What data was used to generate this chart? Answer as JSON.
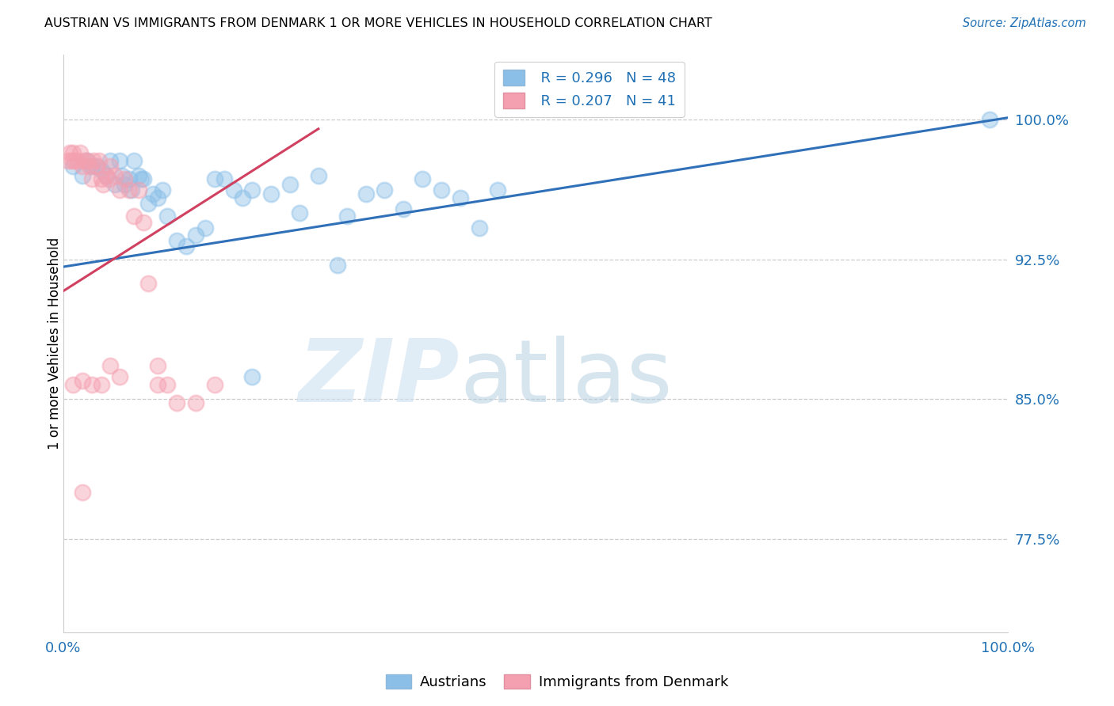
{
  "title": "AUSTRIAN VS IMMIGRANTS FROM DENMARK 1 OR MORE VEHICLES IN HOUSEHOLD CORRELATION CHART",
  "source": "Source: ZipAtlas.com",
  "ylabel": "1 or more Vehicles in Household",
  "xlim": [
    0.0,
    1.0
  ],
  "ylim": [
    0.725,
    1.035
  ],
  "yticks": [
    0.775,
    0.85,
    0.925,
    1.0
  ],
  "ytick_labels": [
    "77.5%",
    "85.0%",
    "92.5%",
    "100.0%"
  ],
  "xticks": [
    0.0,
    1.0
  ],
  "xtick_labels": [
    "0.0%",
    "100.0%"
  ],
  "legend_R_blue": "R = 0.296",
  "legend_N_blue": "N = 48",
  "legend_R_pink": "R = 0.207",
  "legend_N_pink": "N = 41",
  "blue_color": "#8bbfe8",
  "pink_color": "#f4a0b0",
  "line_blue_color": "#3070b8",
  "line_pink_color": "#d04060",
  "blue_line_x0": 0.0,
  "blue_line_y0": 0.921,
  "blue_line_x1": 1.0,
  "blue_line_y1": 1.001,
  "pink_line_x0": 0.0,
  "pink_line_y0": 0.908,
  "pink_line_x1": 0.27,
  "pink_line_y1": 0.995,
  "austrians_x": [
    0.01,
    0.02,
    0.025,
    0.03,
    0.035,
    0.04,
    0.045,
    0.05,
    0.055,
    0.06,
    0.062,
    0.065,
    0.07,
    0.072,
    0.075,
    0.08,
    0.082,
    0.085,
    0.09,
    0.095,
    0.1,
    0.105,
    0.11,
    0.12,
    0.13,
    0.14,
    0.15,
    0.16,
    0.17,
    0.18,
    0.19,
    0.2,
    0.22,
    0.24,
    0.25,
    0.27,
    0.29,
    0.3,
    0.32,
    0.34,
    0.36,
    0.38,
    0.4,
    0.42,
    0.44,
    0.46,
    0.2,
    0.98
  ],
  "austrians_y": [
    0.975,
    0.97,
    0.978,
    0.975,
    0.975,
    0.973,
    0.97,
    0.978,
    0.965,
    0.978,
    0.97,
    0.965,
    0.968,
    0.962,
    0.978,
    0.97,
    0.968,
    0.968,
    0.955,
    0.96,
    0.958,
    0.962,
    0.948,
    0.935,
    0.932,
    0.938,
    0.942,
    0.968,
    0.968,
    0.962,
    0.958,
    0.962,
    0.96,
    0.965,
    0.95,
    0.97,
    0.922,
    0.948,
    0.96,
    0.962,
    0.952,
    0.968,
    0.962,
    0.958,
    0.942,
    0.962,
    0.862,
    1.0
  ],
  "denmark_x": [
    0.005,
    0.007,
    0.009,
    0.01,
    0.012,
    0.015,
    0.018,
    0.02,
    0.022,
    0.025,
    0.028,
    0.03,
    0.032,
    0.035,
    0.038,
    0.04,
    0.042,
    0.045,
    0.048,
    0.05,
    0.055,
    0.06,
    0.065,
    0.07,
    0.075,
    0.08,
    0.085,
    0.09,
    0.1,
    0.11,
    0.12,
    0.14,
    0.16,
    0.1,
    0.05,
    0.06,
    0.02,
    0.03,
    0.04,
    0.02,
    0.01
  ],
  "denmark_y": [
    0.978,
    0.982,
    0.978,
    0.982,
    0.978,
    0.978,
    0.982,
    0.975,
    0.978,
    0.978,
    0.975,
    0.968,
    0.978,
    0.975,
    0.978,
    0.968,
    0.965,
    0.97,
    0.968,
    0.975,
    0.97,
    0.962,
    0.968,
    0.962,
    0.948,
    0.962,
    0.945,
    0.912,
    0.858,
    0.858,
    0.848,
    0.848,
    0.858,
    0.868,
    0.868,
    0.862,
    0.8,
    0.858,
    0.858,
    0.86,
    0.858
  ]
}
